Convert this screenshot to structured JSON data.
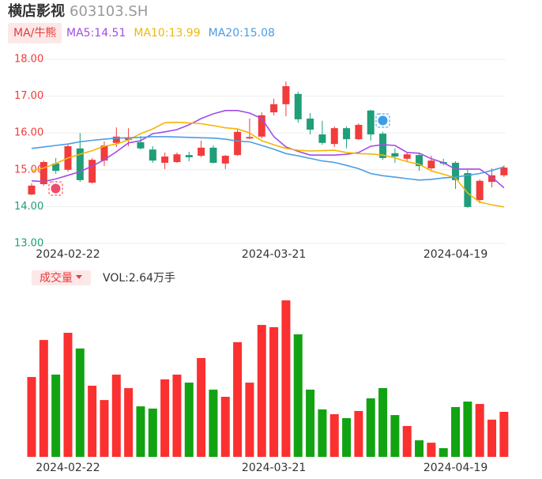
{
  "header": {
    "name": "横店影视",
    "code": "603103.SH"
  },
  "chart_data": [
    {
      "type": "candlestick",
      "tab": "MA/牛熊",
      "categories": [
        null,
        null,
        null,
        "2024-02-22",
        null,
        null,
        null,
        null,
        null,
        null,
        null,
        null,
        null,
        null,
        null,
        null,
        null,
        null,
        null,
        null,
        "2024-03-21",
        null,
        null,
        null,
        null,
        null,
        null,
        null,
        null,
        null,
        null,
        null,
        null,
        null,
        null,
        "2024-04-19",
        null,
        null,
        null,
        null
      ],
      "open": [
        14.33,
        14.61,
        15.17,
        15.0,
        15.58,
        14.65,
        15.25,
        15.73,
        15.81,
        15.75,
        15.55,
        15.19,
        15.21,
        15.4,
        15.38,
        15.6,
        15.17,
        15.4,
        15.85,
        15.9,
        16.56,
        16.78,
        17.06,
        16.39,
        15.96,
        15.7,
        16.13,
        15.83,
        16.61,
        15.98,
        15.45,
        15.3,
        15.4,
        15.04,
        15.21,
        15.19,
        14.91,
        14.18,
        14.67,
        14.85
      ],
      "high": [
        14.63,
        15.25,
        15.32,
        15.68,
        16.0,
        15.32,
        15.77,
        16.15,
        16.13,
        15.92,
        15.64,
        15.47,
        15.47,
        15.49,
        15.79,
        15.66,
        15.4,
        16.11,
        16.39,
        16.56,
        16.93,
        17.4,
        17.12,
        16.54,
        16.33,
        16.18,
        16.18,
        16.26,
        16.63,
        16.03,
        15.58,
        15.47,
        15.45,
        15.38,
        15.3,
        15.23,
        15.0,
        14.74,
        15.04,
        15.12
      ],
      "low": [
        14.31,
        14.57,
        14.89,
        14.95,
        14.67,
        14.63,
        15.1,
        15.62,
        15.64,
        15.55,
        15.19,
        15.02,
        15.19,
        15.23,
        15.34,
        15.17,
        15.02,
        15.38,
        15.83,
        15.85,
        16.48,
        16.45,
        16.28,
        15.96,
        15.68,
        15.62,
        15.58,
        15.81,
        15.79,
        15.27,
        15.19,
        15.23,
        14.97,
        15.0,
        15.12,
        14.48,
        13.97,
        14.09,
        14.52,
        14.8
      ],
      "close": [
        14.57,
        15.21,
        14.97,
        15.64,
        14.72,
        15.27,
        15.66,
        15.9,
        15.87,
        15.58,
        15.25,
        15.36,
        15.42,
        15.34,
        15.6,
        15.19,
        15.38,
        16.03,
        15.89,
        16.48,
        16.78,
        17.27,
        16.37,
        16.09,
        15.73,
        16.13,
        15.83,
        16.22,
        15.96,
        15.32,
        15.36,
        15.42,
        15.1,
        15.25,
        15.17,
        14.72,
        13.99,
        14.7,
        14.85,
        15.06
      ],
      "up_color": "#f23b3b",
      "down_color": "#1f9e78",
      "series": [
        {
          "name": "MA5:14.51",
          "color": "#a24ce6",
          "values": [
            14.7,
            14.68,
            14.75,
            14.85,
            14.95,
            15.1,
            15.27,
            15.49,
            15.73,
            15.79,
            15.98,
            16.03,
            16.09,
            16.22,
            16.39,
            16.52,
            16.61,
            16.61,
            16.54,
            16.39,
            15.9,
            15.62,
            15.5,
            15.4,
            15.4,
            15.4,
            15.42,
            15.47,
            15.64,
            15.68,
            15.66,
            15.47,
            15.45,
            15.3,
            15.19,
            15.02,
            15.02,
            15.02,
            14.8,
            14.51
          ]
        },
        {
          "name": "MA10:13.99",
          "color": "#f2b705",
          "values": [
            14.97,
            15.05,
            15.17,
            15.32,
            15.42,
            15.52,
            15.64,
            15.7,
            15.81,
            15.98,
            16.11,
            16.28,
            16.29,
            16.27,
            16.25,
            16.2,
            16.14,
            16.11,
            16.0,
            15.79,
            15.68,
            15.58,
            15.53,
            15.51,
            15.52,
            15.53,
            15.47,
            15.44,
            15.43,
            15.4,
            15.32,
            15.22,
            15.15,
            14.97,
            14.88,
            14.78,
            14.37,
            14.12,
            14.05,
            13.99
          ]
        },
        {
          "name": "MA20:15.08",
          "color": "#4a9de6",
          "values": [
            15.58,
            15.62,
            15.66,
            15.7,
            15.76,
            15.8,
            15.83,
            15.86,
            15.87,
            15.88,
            15.9,
            15.9,
            15.89,
            15.88,
            15.87,
            15.86,
            15.83,
            15.78,
            15.76,
            15.66,
            15.56,
            15.44,
            15.38,
            15.31,
            15.24,
            15.2,
            15.12,
            15.03,
            14.9,
            14.84,
            14.8,
            14.76,
            14.72,
            14.74,
            14.78,
            14.8,
            14.85,
            14.9,
            14.98,
            15.08
          ]
        }
      ],
      "ylim": [
        13,
        18
      ],
      "yticks": [
        {
          "value": 18,
          "label": "18.00"
        },
        {
          "value": 17,
          "label": "17.00"
        },
        {
          "value": 16,
          "label": "16.00"
        },
        {
          "value": 15,
          "label": "15.00"
        },
        {
          "value": 14,
          "label": "14.00"
        },
        {
          "value": 13,
          "label": "13.00"
        }
      ],
      "ytick_colors": [
        "#f23b3b",
        "#f23b3b",
        "#f23b3b",
        "#f23b3b",
        "#1f9e78",
        "#1f9e78"
      ],
      "grid": true
    },
    {
      "type": "bar",
      "tab": "成交量",
      "title": "VOL:2.64万手",
      "categories": [
        null,
        null,
        null,
        "2024-02-22",
        null,
        null,
        null,
        null,
        null,
        null,
        null,
        null,
        null,
        null,
        null,
        null,
        null,
        null,
        null,
        null,
        "2024-03-21",
        null,
        null,
        null,
        null,
        null,
        null,
        null,
        null,
        null,
        null,
        null,
        null,
        null,
        null,
        "2024-04-19",
        null,
        null,
        null,
        null
      ],
      "values": [
        4.68,
        6.85,
        4.82,
        7.27,
        6.35,
        4.17,
        3.33,
        4.82,
        4.03,
        2.96,
        2.83,
        4.54,
        4.82,
        4.35,
        5.79,
        3.94,
        3.52,
        6.72,
        4.35,
        7.73,
        7.6,
        9.17,
        7.18,
        3.94,
        2.78,
        2.5,
        2.27,
        2.69,
        3.43,
        4.03,
        2.45,
        1.81,
        0.97,
        0.83,
        0.51,
        2.92,
        3.24,
        3.1,
        2.18,
        2.64
      ],
      "up_color": "#fb3030",
      "down_color": "#12a312"
    }
  ]
}
